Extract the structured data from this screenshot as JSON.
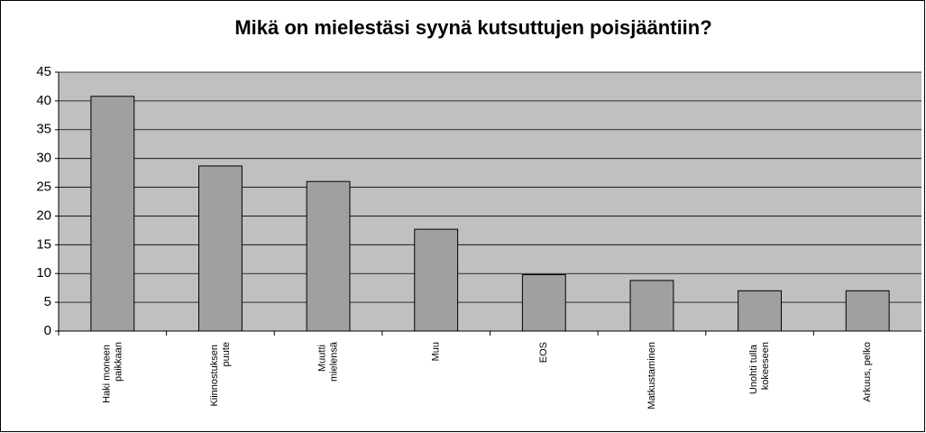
{
  "chart_data": {
    "type": "bar",
    "title": "Mikä on mielestäsi syynä kutsuttujen poisjääntiin?",
    "categories": [
      "Haki moneen\npaikkaan",
      "Kiinnostuksen\npuute",
      "Muutti\nmielensä",
      "Muu",
      "EOS",
      "Matkustaminen",
      "Unohti tulla\nkokeeseen",
      "Arkuus, pelko"
    ],
    "values": [
      40.8,
      28.7,
      26,
      17.7,
      9.8,
      8.8,
      7,
      7
    ],
    "color": "#a0a0a0",
    "ylim": [
      0,
      45
    ],
    "yticks": [
      0,
      5,
      10,
      15,
      20,
      25,
      30,
      35,
      40,
      45
    ],
    "grid": true
  }
}
